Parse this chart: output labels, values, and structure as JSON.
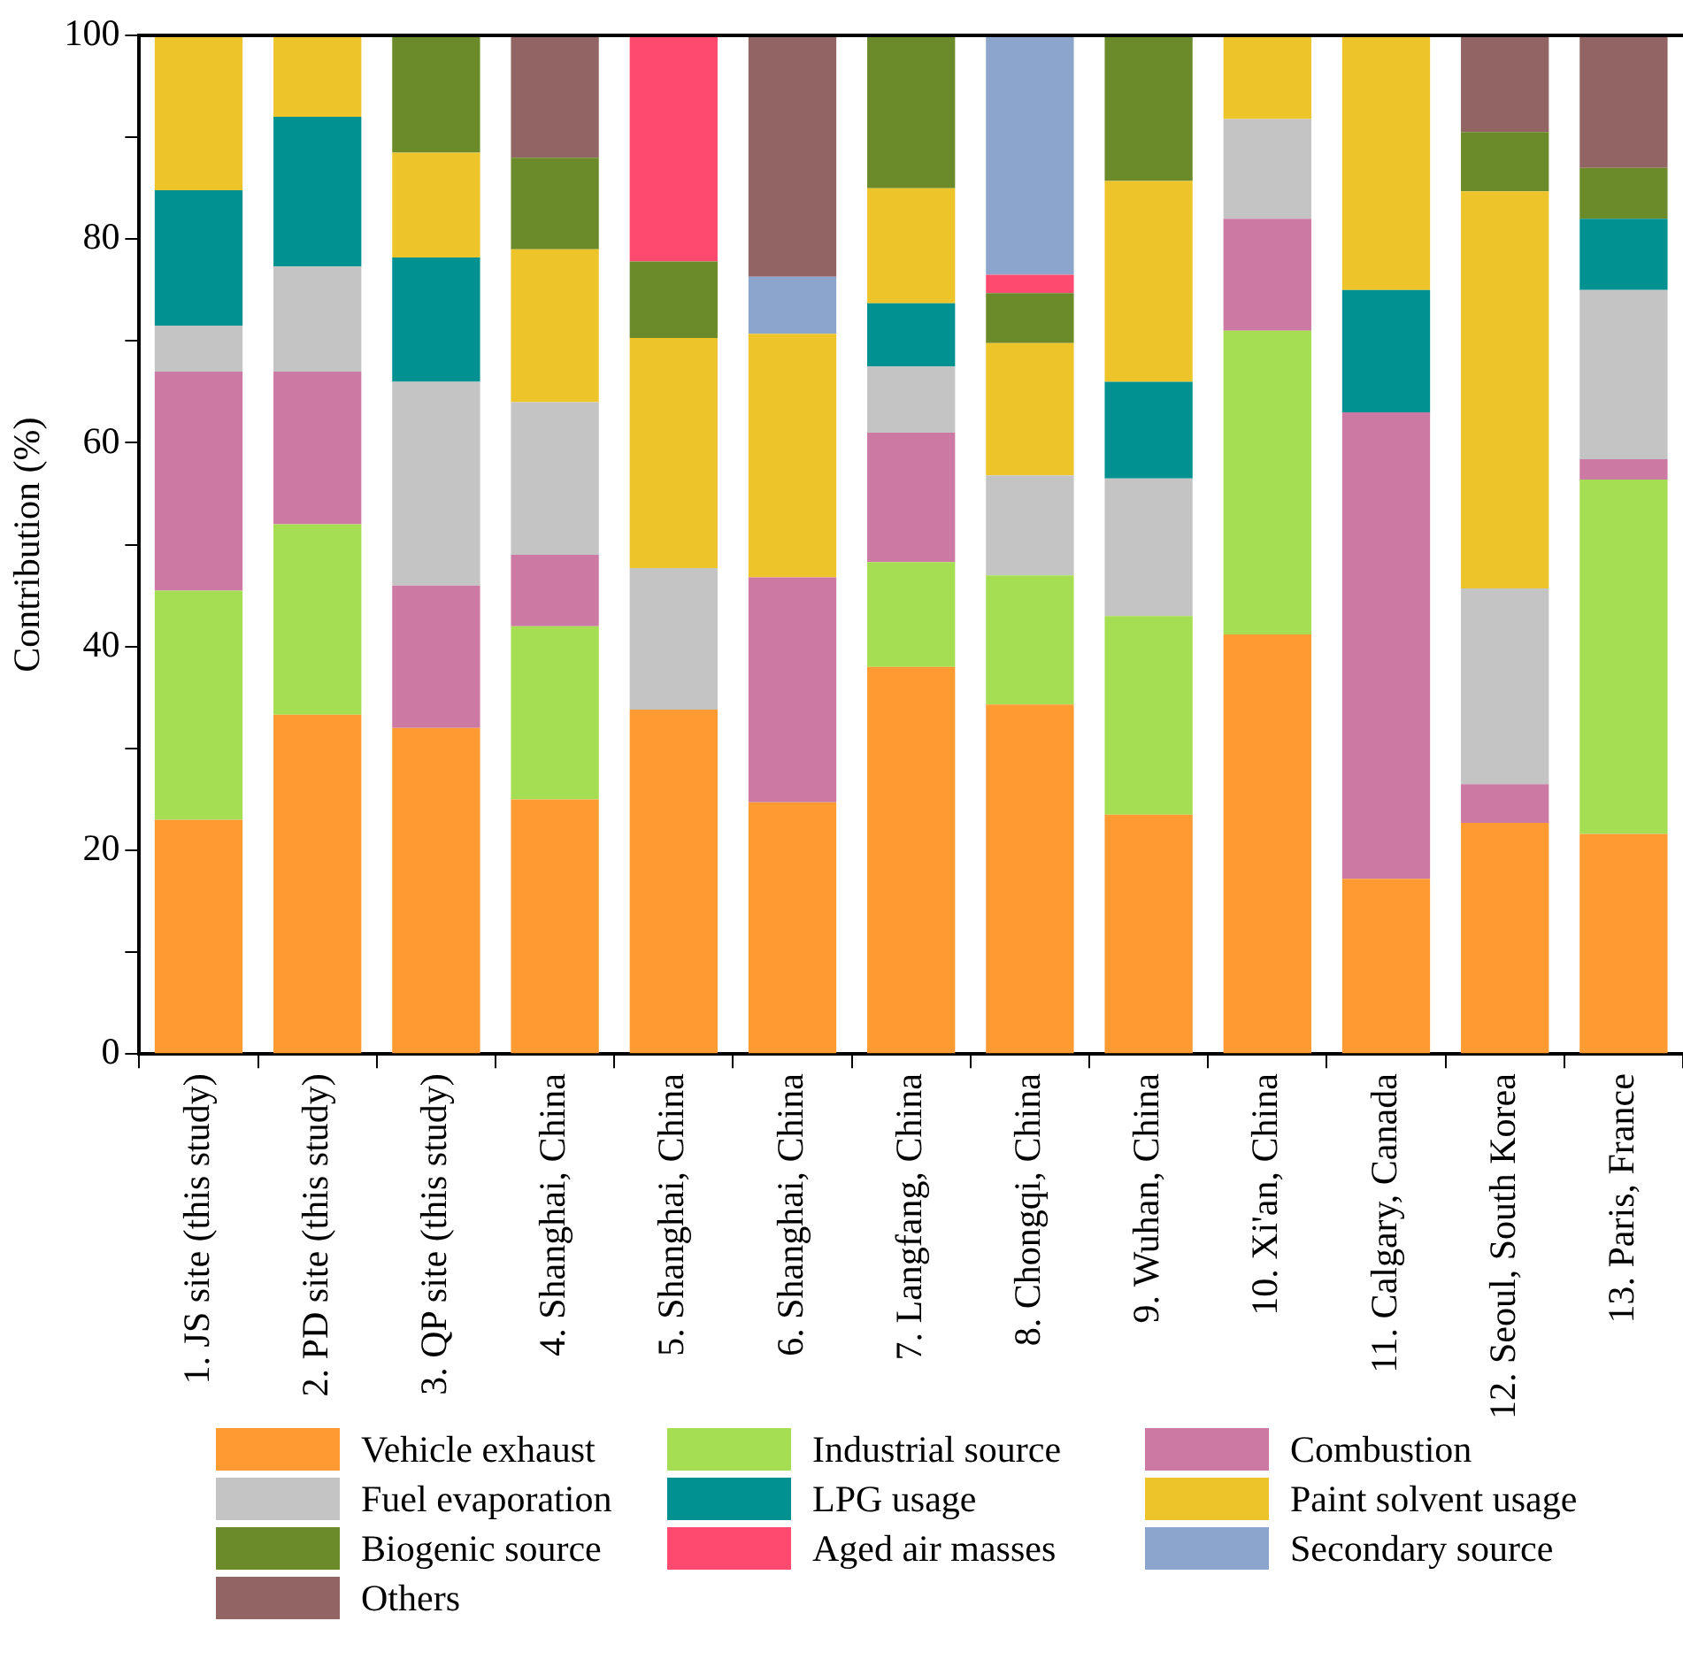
{
  "chart_data": {
    "type": "bar",
    "stacked": true,
    "ylabel": "Contribution (%)",
    "categories": [
      "1. JS site (this study)",
      "2. PD site (this study)",
      "3. QP site (this study)",
      "4. Shanghai, China",
      "5. Shanghai, China",
      "6. Shanghai, China",
      "7. Langfang, China",
      "8. Chongqi, China",
      "9. Wuhan, China",
      "10. Xi'an, China",
      "11. Calgary, Canada",
      "12. Seoul, South Korea",
      "13. Paris, France"
    ],
    "series": [
      {
        "name": "Vehicle exhaust",
        "color": "#fd9a31",
        "values": [
          23,
          33.3,
          32,
          25,
          33.8,
          24.7,
          38,
          34.3,
          23.5,
          41.2,
          17.2,
          22.7,
          21.6
        ]
      },
      {
        "name": "Industrial source",
        "color": "#a5de52",
        "values": [
          22.5,
          18.7,
          null,
          17,
          null,
          null,
          10.3,
          12.7,
          19.5,
          29.8,
          null,
          null,
          34.8
        ]
      },
      {
        "name": "Combustion",
        "color": "#cc79a4",
        "values": [
          21.5,
          15,
          14,
          7,
          null,
          22.1,
          12.7,
          null,
          null,
          11,
          45.8,
          3.8,
          2
        ]
      },
      {
        "name": "Fuel evaporation",
        "color": "#c4c4c4",
        "values": [
          4.5,
          10.3,
          20,
          15,
          13.9,
          null,
          6.5,
          9.8,
          13.5,
          9.8,
          null,
          19.2,
          16.6
        ]
      },
      {
        "name": "LPG usage",
        "color": "#009190",
        "values": [
          13.3,
          14.7,
          12.2,
          null,
          null,
          null,
          6.2,
          null,
          9.5,
          null,
          12,
          null,
          7
        ]
      },
      {
        "name": "Paint solvent usage",
        "color": "#edc42a",
        "values": [
          15.2,
          8,
          10.3,
          15,
          22.6,
          23.9,
          11.3,
          13,
          19.7,
          8.2,
          25,
          39,
          null
        ]
      },
      {
        "name": "Biogenic source",
        "color": "#6b8a2a",
        "values": [
          null,
          null,
          11.5,
          9,
          7.5,
          null,
          15,
          4.9,
          14.3,
          null,
          null,
          5.8,
          5
        ]
      },
      {
        "name": "Aged air masses",
        "color": "#fe4a6e",
        "values": [
          null,
          null,
          null,
          null,
          22.2,
          null,
          null,
          1.8,
          null,
          null,
          null,
          null,
          null
        ]
      },
      {
        "name": "Secondary source",
        "color": "#8ba5cd",
        "values": [
          null,
          null,
          null,
          null,
          null,
          5.6,
          null,
          23.5,
          null,
          null,
          null,
          null,
          null
        ]
      },
      {
        "name": "Others",
        "color": "#926463",
        "values": [
          null,
          null,
          null,
          12,
          null,
          23.7,
          null,
          null,
          null,
          null,
          null,
          9.5,
          13
        ]
      }
    ],
    "ylim": [
      0,
      100
    ],
    "yticks": [
      0,
      {
        "value": 10,
        "label": null
      },
      20,
      {
        "value": 30,
        "label": null
      },
      40,
      {
        "value": 50,
        "label": null
      },
      60,
      {
        "value": 70,
        "label": null
      },
      80,
      {
        "value": 90,
        "label": null
      },
      100
    ],
    "grid": false,
    "legend": "bottom"
  }
}
